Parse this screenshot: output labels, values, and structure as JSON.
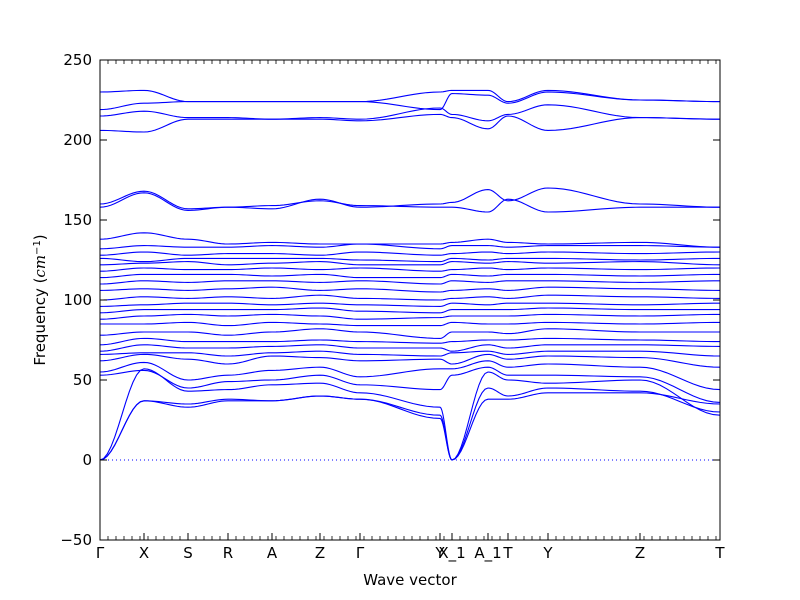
{
  "chart_data": {
    "type": "line",
    "xlabel": "Wave vector",
    "ylabel": "Frequency ($cm^{-1}$)",
    "ylim": [
      -50,
      250
    ],
    "yticks": [
      "250",
      "200",
      "150",
      "100",
      "50",
      "0",
      "−50"
    ],
    "xlim": [
      0,
      15.5
    ],
    "high_symmetry_points": [
      {
        "label": "Γ",
        "x": 0.0
      },
      {
        "label": "X",
        "x": 1.1
      },
      {
        "label": "S",
        "x": 2.2
      },
      {
        "label": "R",
        "x": 3.2
      },
      {
        "label": "A",
        "x": 4.3
      },
      {
        "label": "Z",
        "x": 5.5
      },
      {
        "label": "Γ",
        "x": 6.5
      },
      {
        "label": "Y",
        "x": 8.5
      },
      {
        "label": "X_1",
        "x": 8.8
      },
      {
        "label": "A_1",
        "x": 9.7
      },
      {
        "label": "T",
        "x": 10.2
      },
      {
        "label": "Y",
        "x": 11.2
      },
      {
        "label": "Z",
        "x": 13.5
      },
      {
        "label": "T",
        "x": 15.5
      }
    ],
    "zero_reference_line": true,
    "grid": false,
    "series": [
      {
        "values": [
          0,
          37,
          33,
          37,
          37,
          40,
          38,
          26,
          0,
          38,
          38,
          42,
          42,
          35,
          40
        ]
      },
      {
        "values": [
          0,
          37,
          35,
          38,
          37,
          40,
          38,
          28,
          0,
          45,
          40,
          45,
          43,
          30,
          42
        ]
      },
      {
        "values": [
          0,
          57,
          43,
          44,
          47,
          48,
          42,
          33,
          0,
          55,
          50,
          48,
          50,
          28,
          52
        ]
      },
      {
        "values": [
          53,
          56,
          45,
          49,
          50,
          53,
          47,
          44,
          53,
          58,
          53,
          53,
          52,
          36,
          52
        ]
      },
      {
        "values": [
          55,
          61,
          50,
          53,
          56,
          58,
          52,
          57,
          57,
          62,
          58,
          60,
          58,
          44,
          60
        ]
      },
      {
        "values": [
          62,
          66,
          63,
          60,
          65,
          64,
          62,
          63,
          60,
          66,
          63,
          65,
          64,
          58,
          66
        ]
      },
      {
        "values": [
          66,
          67,
          67,
          65,
          67,
          68,
          66,
          65,
          67,
          68,
          66,
          68,
          68,
          65,
          68
        ]
      },
      {
        "values": [
          68,
          72,
          70,
          70,
          71,
          72,
          70,
          70,
          68,
          72,
          70,
          72,
          72,
          71,
          72
        ]
      },
      {
        "values": [
          72,
          76,
          74,
          74,
          74,
          75,
          74,
          73,
          74,
          75,
          75,
          76,
          75,
          74,
          75
        ]
      },
      {
        "values": [
          78,
          80,
          80,
          78,
          80,
          82,
          80,
          76,
          80,
          80,
          79,
          82,
          80,
          80,
          82
        ]
      },
      {
        "values": [
          85,
          85,
          86,
          84,
          86,
          85,
          84,
          84,
          86,
          85,
          85,
          86,
          85,
          86,
          86
        ]
      },
      {
        "values": [
          88,
          90,
          91,
          90,
          91,
          90,
          88,
          89,
          90,
          90,
          90,
          91,
          90,
          91,
          90
        ]
      },
      {
        "values": [
          92,
          94,
          94,
          94,
          94,
          95,
          93,
          92,
          94,
          94,
          94,
          95,
          94,
          94,
          95
        ]
      },
      {
        "values": [
          96,
          97,
          98,
          98,
          97,
          98,
          97,
          96,
          98,
          97,
          98,
          98,
          97,
          98,
          97
        ]
      },
      {
        "values": [
          100,
          102,
          101,
          102,
          101,
          103,
          101,
          100,
          101,
          102,
          101,
          103,
          102,
          101,
          102
        ]
      },
      {
        "values": [
          106,
          107,
          106,
          107,
          108,
          106,
          107,
          105,
          106,
          107,
          106,
          108,
          107,
          106,
          107
        ]
      },
      {
        "values": [
          110,
          112,
          111,
          112,
          112,
          111,
          112,
          110,
          112,
          111,
          112,
          112,
          111,
          112,
          112
        ]
      },
      {
        "values": [
          114,
          116,
          116,
          116,
          115,
          116,
          114,
          114,
          116,
          115,
          116,
          116,
          115,
          116,
          115
        ]
      },
      {
        "values": [
          118,
          120,
          119,
          119,
          120,
          119,
          120,
          118,
          119,
          120,
          119,
          120,
          119,
          120,
          119
        ]
      },
      {
        "values": [
          122,
          123,
          124,
          122,
          123,
          124,
          122,
          122,
          124,
          123,
          124,
          123,
          124,
          122,
          124
        ]
      },
      {
        "values": [
          126,
          124,
          126,
          126,
          126,
          126,
          125,
          124,
          126,
          125,
          126,
          126,
          125,
          126,
          127
        ]
      },
      {
        "values": [
          128,
          130,
          128,
          129,
          129,
          128,
          130,
          128,
          129,
          130,
          129,
          130,
          129,
          130,
          130
        ]
      },
      {
        "values": [
          132,
          134,
          133,
          133,
          134,
          133,
          135,
          132,
          134,
          134,
          133,
          134,
          134,
          133,
          132
        ]
      },
      {
        "values": [
          138,
          142,
          138,
          135,
          136,
          135,
          135,
          135,
          136,
          138,
          136,
          135,
          136,
          133,
          130
        ]
      },
      {
        "values": [
          158,
          167,
          156,
          158,
          157,
          163,
          158,
          160,
          161,
          169,
          162,
          170,
          160,
          158,
          163
        ]
      },
      {
        "values": [
          160,
          168,
          157,
          158,
          159,
          162,
          159,
          158,
          158,
          155,
          163,
          155,
          158,
          158,
          163
        ]
      },
      {
        "values": [
          206,
          205,
          213,
          213,
          213,
          213,
          212,
          216,
          214,
          207,
          215,
          206,
          214,
          213,
          214
        ]
      },
      {
        "values": [
          215,
          218,
          214,
          214,
          213,
          214,
          213,
          220,
          216,
          212,
          216,
          222,
          214,
          213,
          214
        ]
      },
      {
        "values": [
          219,
          223,
          224,
          224,
          224,
          224,
          224,
          219,
          229,
          228,
          223,
          230,
          225,
          224,
          224
        ]
      },
      {
        "values": [
          230,
          231,
          224,
          224,
          224,
          224,
          224,
          230,
          231,
          231,
          224,
          231,
          225,
          224,
          224
        ]
      }
    ]
  }
}
